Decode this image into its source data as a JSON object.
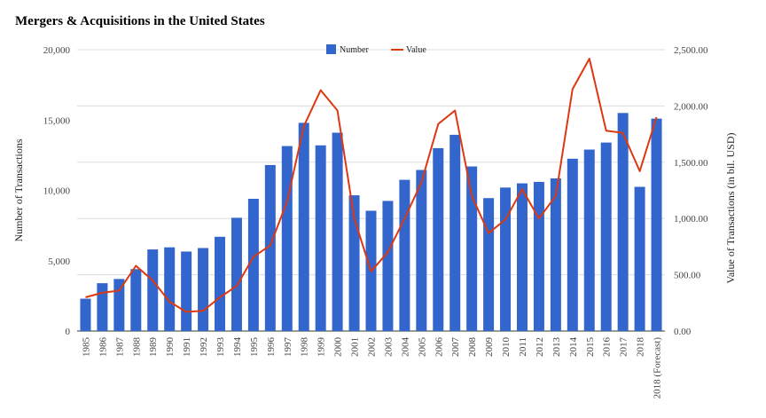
{
  "chart_data": {
    "type": "bar",
    "title": "Mergers & Acquisitions in the United States",
    "categories": [
      "1985",
      "1986",
      "1987",
      "1988",
      "1989",
      "1990",
      "1991",
      "1992",
      "1993",
      "1994",
      "1995",
      "1996",
      "1997",
      "1998",
      "1999",
      "2000",
      "2001",
      "2002",
      "2003",
      "2004",
      "2005",
      "2006",
      "2007",
      "2008",
      "2009",
      "2010",
      "2011",
      "2012",
      "2013",
      "2014",
      "2015",
      "2016",
      "2017",
      "2018",
      "2018 (Forecast)"
    ],
    "series": [
      {
        "name": "Number",
        "type": "bar",
        "axis": "left",
        "color": "#3366cc",
        "values": [
          2300,
          3400,
          3700,
          4400,
          5800,
          5950,
          5650,
          5900,
          6700,
          8050,
          9400,
          11800,
          13150,
          14800,
          13200,
          14100,
          9650,
          8550,
          9250,
          10750,
          11450,
          13000,
          13950,
          11700,
          9450,
          10200,
          10500,
          10600,
          10850,
          12250,
          12900,
          13400,
          15500,
          10250,
          15100
        ]
      },
      {
        "name": "Value",
        "type": "line",
        "axis": "right",
        "color": "#dc3912",
        "values": [
          300,
          340,
          360,
          580,
          450,
          260,
          170,
          180,
          300,
          400,
          660,
          760,
          1150,
          1820,
          2140,
          1960,
          1000,
          530,
          700,
          1000,
          1320,
          1840,
          1960,
          1200,
          870,
          990,
          1260,
          1000,
          1200,
          2150,
          2420,
          1780,
          1760,
          1420,
          1900
        ]
      }
    ],
    "y_left": {
      "label": "Number of Transactions",
      "range": [
        0,
        20000
      ],
      "ticks": [
        "0",
        "5,000",
        "10,000",
        "15,000",
        "20,000"
      ]
    },
    "y_right": {
      "label": "Value of Transactions (in bil. USD)",
      "range": [
        0,
        2500
      ],
      "ticks": [
        "0.00",
        "500.00",
        "1,000.00",
        "1,500.00",
        "2,000.00",
        "2,500.00"
      ]
    },
    "legend_position": "top-center",
    "grid": true
  }
}
